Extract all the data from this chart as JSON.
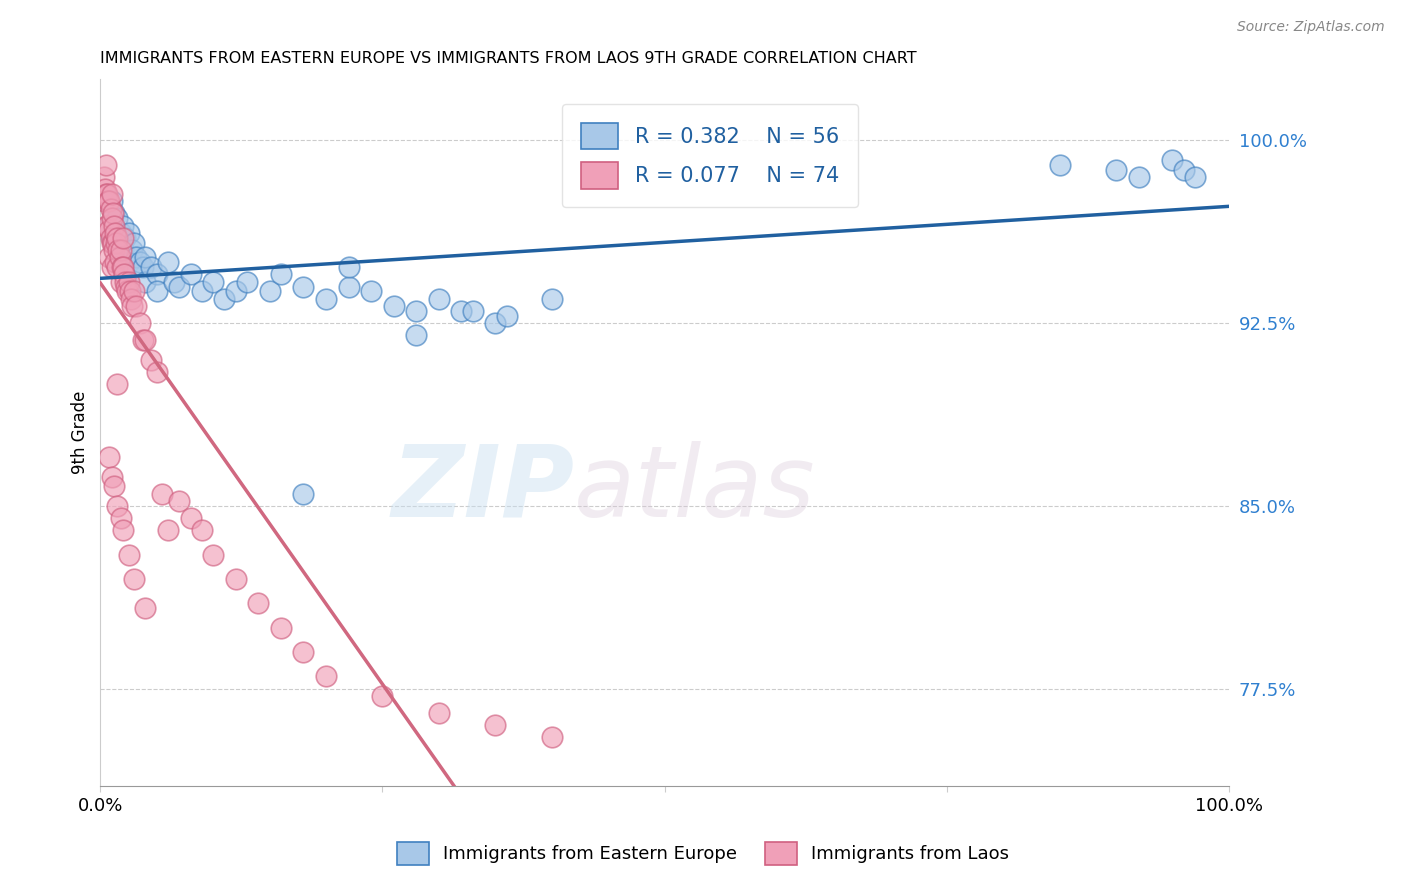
{
  "title": "IMMIGRANTS FROM EASTERN EUROPE VS IMMIGRANTS FROM LAOS 9TH GRADE CORRELATION CHART",
  "source": "Source: ZipAtlas.com",
  "ylabel": "9th Grade",
  "ylabel_right_labels": [
    "100.0%",
    "92.5%",
    "85.0%",
    "77.5%"
  ],
  "ylabel_right_values": [
    1.0,
    0.925,
    0.85,
    0.775
  ],
  "x_min": 0.0,
  "x_max": 1.0,
  "y_min": 0.735,
  "y_max": 1.025,
  "legend_r1": "R = 0.382",
  "legend_n1": "N = 56",
  "legend_r2": "R = 0.077",
  "legend_n2": "N = 74",
  "watermark_zip": "ZIP",
  "watermark_atlas": "atlas",
  "blue_fill": "#a8c8e8",
  "blue_edge": "#4080c0",
  "pink_fill": "#f0a0b8",
  "pink_edge": "#d06080",
  "blue_line_color": "#2060a0",
  "pink_line_color": "#d06880",
  "ref_line_color": "#c8a0b0",
  "blue_scatter_x": [
    0.005,
    0.008,
    0.01,
    0.01,
    0.012,
    0.015,
    0.015,
    0.018,
    0.02,
    0.02,
    0.022,
    0.025,
    0.025,
    0.028,
    0.03,
    0.03,
    0.032,
    0.035,
    0.038,
    0.04,
    0.04,
    0.045,
    0.05,
    0.05,
    0.06,
    0.065,
    0.07,
    0.08,
    0.09,
    0.1,
    0.11,
    0.12,
    0.13,
    0.15,
    0.16,
    0.18,
    0.2,
    0.22,
    0.24,
    0.26,
    0.28,
    0.3,
    0.32,
    0.35,
    0.18,
    0.85,
    0.9,
    0.92,
    0.95,
    0.96,
    0.97,
    0.33,
    0.36,
    0.4,
    0.28,
    0.22
  ],
  "blue_scatter_y": [
    0.975,
    0.965,
    0.975,
    0.96,
    0.97,
    0.968,
    0.958,
    0.962,
    0.965,
    0.955,
    0.96,
    0.962,
    0.95,
    0.955,
    0.958,
    0.948,
    0.952,
    0.95,
    0.948,
    0.952,
    0.942,
    0.948,
    0.945,
    0.938,
    0.95,
    0.942,
    0.94,
    0.945,
    0.938,
    0.942,
    0.935,
    0.938,
    0.942,
    0.938,
    0.945,
    0.94,
    0.935,
    0.94,
    0.938,
    0.932,
    0.93,
    0.935,
    0.93,
    0.925,
    0.855,
    0.99,
    0.988,
    0.985,
    0.992,
    0.988,
    0.985,
    0.93,
    0.928,
    0.935,
    0.92,
    0.948
  ],
  "pink_scatter_x": [
    0.003,
    0.003,
    0.004,
    0.005,
    0.005,
    0.005,
    0.006,
    0.006,
    0.007,
    0.008,
    0.008,
    0.008,
    0.009,
    0.009,
    0.01,
    0.01,
    0.01,
    0.01,
    0.011,
    0.011,
    0.012,
    0.012,
    0.013,
    0.013,
    0.014,
    0.015,
    0.015,
    0.016,
    0.017,
    0.018,
    0.018,
    0.019,
    0.02,
    0.02,
    0.021,
    0.022,
    0.023,
    0.024,
    0.025,
    0.026,
    0.027,
    0.028,
    0.03,
    0.032,
    0.035,
    0.038,
    0.04,
    0.045,
    0.05,
    0.055,
    0.06,
    0.07,
    0.08,
    0.09,
    0.1,
    0.12,
    0.14,
    0.16,
    0.18,
    0.2,
    0.25,
    0.3,
    0.35,
    0.4,
    0.008,
    0.01,
    0.012,
    0.015,
    0.018,
    0.02,
    0.025,
    0.03,
    0.04,
    0.015
  ],
  "pink_scatter_y": [
    0.985,
    0.975,
    0.98,
    0.99,
    0.978,
    0.965,
    0.978,
    0.965,
    0.975,
    0.975,
    0.963,
    0.952,
    0.972,
    0.96,
    0.978,
    0.968,
    0.958,
    0.948,
    0.97,
    0.958,
    0.965,
    0.955,
    0.962,
    0.95,
    0.958,
    0.96,
    0.948,
    0.955,
    0.952,
    0.955,
    0.942,
    0.948,
    0.96,
    0.948,
    0.945,
    0.942,
    0.94,
    0.938,
    0.942,
    0.938,
    0.935,
    0.932,
    0.938,
    0.932,
    0.925,
    0.918,
    0.918,
    0.91,
    0.905,
    0.855,
    0.84,
    0.852,
    0.845,
    0.84,
    0.83,
    0.82,
    0.81,
    0.8,
    0.79,
    0.78,
    0.772,
    0.765,
    0.76,
    0.755,
    0.87,
    0.862,
    0.858,
    0.85,
    0.845,
    0.84,
    0.83,
    0.82,
    0.808,
    0.9
  ]
}
